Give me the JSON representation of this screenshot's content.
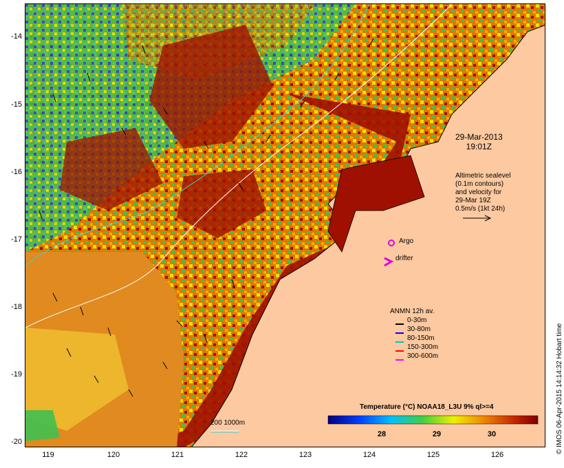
{
  "map": {
    "date": "29-Mar-2013",
    "time": "19:01Z",
    "sealevel_note": [
      "Altimetric sealevel",
      "(0.1m contours)",
      "and velocity for",
      "29-Mar 19Z",
      "0.5m/s (1kt 24h)"
    ],
    "argo_label": "Argo",
    "drifter_label": "drifter",
    "depth_contours_label": "200 1000m",
    "credit": "© IMOS 06-Apr-2015 14:14:32 Hobart time",
    "colors": {
      "land": "#fcc9a0",
      "warm": "#a01000",
      "orange": "#e07800",
      "yellow": "#f0e000",
      "green": "#40c050",
      "blue": "#2040e0",
      "argo": "#e000e0"
    }
  },
  "axes": {
    "y_ticks": [
      "-14",
      "-15",
      "-16",
      "-17",
      "-18",
      "-19",
      "-20"
    ],
    "x_ticks": [
      "119",
      "120",
      "121",
      "122",
      "123",
      "124",
      "125",
      "126"
    ]
  },
  "legend": {
    "title": "ANMN 12h av.",
    "items": [
      {
        "label": "0-30m",
        "color": "#000000"
      },
      {
        "label": "30-80m",
        "color": "#0000ff"
      },
      {
        "label": "80-150m",
        "color": "#00c0c0"
      },
      {
        "label": "150-300m",
        "color": "#ff0000"
      },
      {
        "label": "300-600m",
        "color": "#ff00ff"
      }
    ]
  },
  "colorbar": {
    "title": "Temperature (°C) NOAA18_L3U 9% ql>=4",
    "ticks": [
      "28",
      "29",
      "30"
    ]
  }
}
